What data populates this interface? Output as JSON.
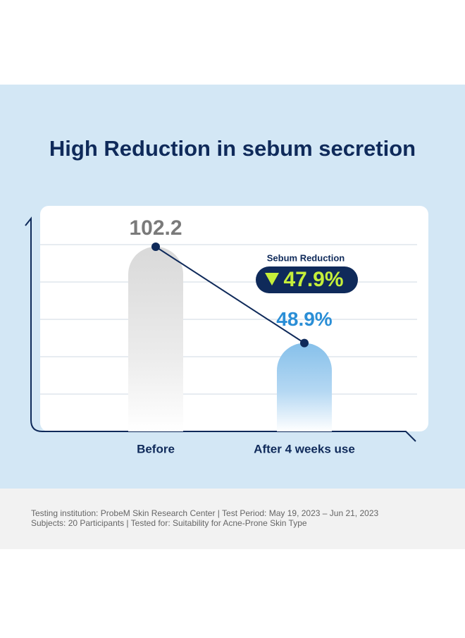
{
  "chart_data": {
    "type": "bar",
    "title": "High Reduction in sebum secretion",
    "categories": [
      "Before",
      "After 4 weeks use"
    ],
    "values": [
      102.2,
      48.9
    ],
    "value_labels": [
      "102.2",
      "48.9%"
    ],
    "colors": [
      "#d9d9d9",
      "#86c0ea"
    ],
    "label_colors": [
      "#7a7a7a",
      "#2a8ed6"
    ],
    "ylim": [
      0,
      110
    ],
    "grid": true,
    "annotation": {
      "title": "Sebum Reduction",
      "text": "47.9%"
    },
    "footnotes": [
      "Testing institution: ProbeM Skin Research Center | Test Period: May 19, 2023 – Jun 21, 2023",
      "Subjects: 20 Participants | Tested for: Suitability for Acne-Prone Skin Type"
    ]
  }
}
